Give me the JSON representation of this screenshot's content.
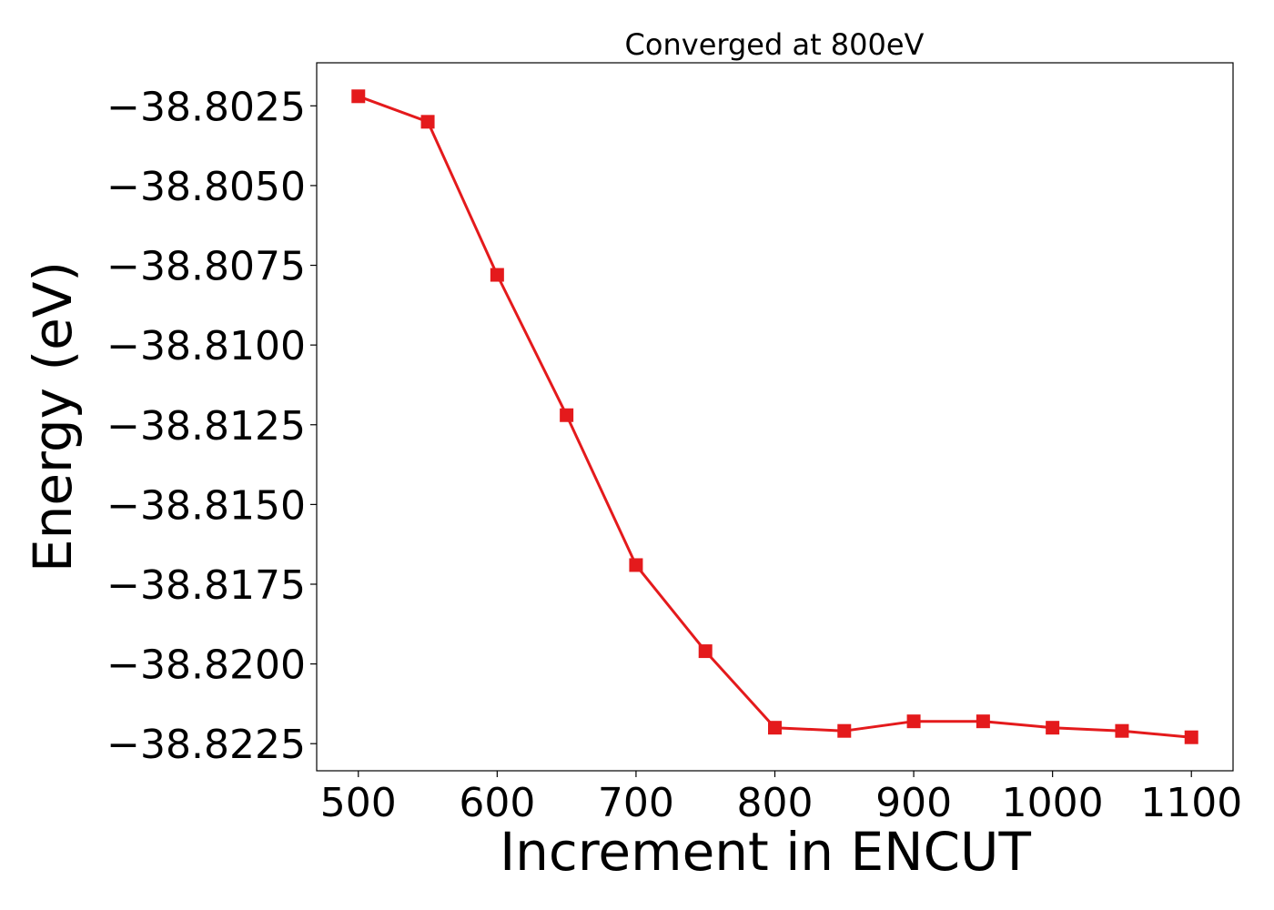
{
  "chart_data": {
    "type": "line",
    "title": "Converged at 800eV",
    "xlabel": "Increment in ENCUT",
    "ylabel": "Energy (eV)",
    "x": [
      500,
      550,
      600,
      650,
      700,
      750,
      800,
      850,
      900,
      950,
      1000,
      1050,
      1100
    ],
    "series": [
      {
        "color": "#e41a1c",
        "marker": "square",
        "values": [
          -38.8022,
          -38.803,
          -38.8078,
          -38.8122,
          -38.8169,
          -38.8196,
          -38.822,
          -38.8221,
          -38.8218,
          -38.8218,
          -38.822,
          -38.8221,
          -38.8223
        ]
      }
    ],
    "xticks": [
      500,
      600,
      700,
      800,
      900,
      1000,
      1100
    ],
    "xtick_labels": [
      "500",
      "600",
      "700",
      "800",
      "900",
      "1000",
      "1100"
    ],
    "yticks": [
      -38.8025,
      -38.805,
      -38.8075,
      -38.81,
      -38.8125,
      -38.815,
      -38.8175,
      -38.82,
      -38.8225
    ],
    "ytick_labels": [
      "−38.8025",
      "−38.8050",
      "−38.8075",
      "−38.8100",
      "−38.8125",
      "−38.8150",
      "−38.8175",
      "−38.8200",
      "−38.8225"
    ],
    "xlim": [
      470,
      1130
    ],
    "ylim": [
      -38.82335,
      -38.80115
    ],
    "grid": false,
    "legend": "none"
  }
}
